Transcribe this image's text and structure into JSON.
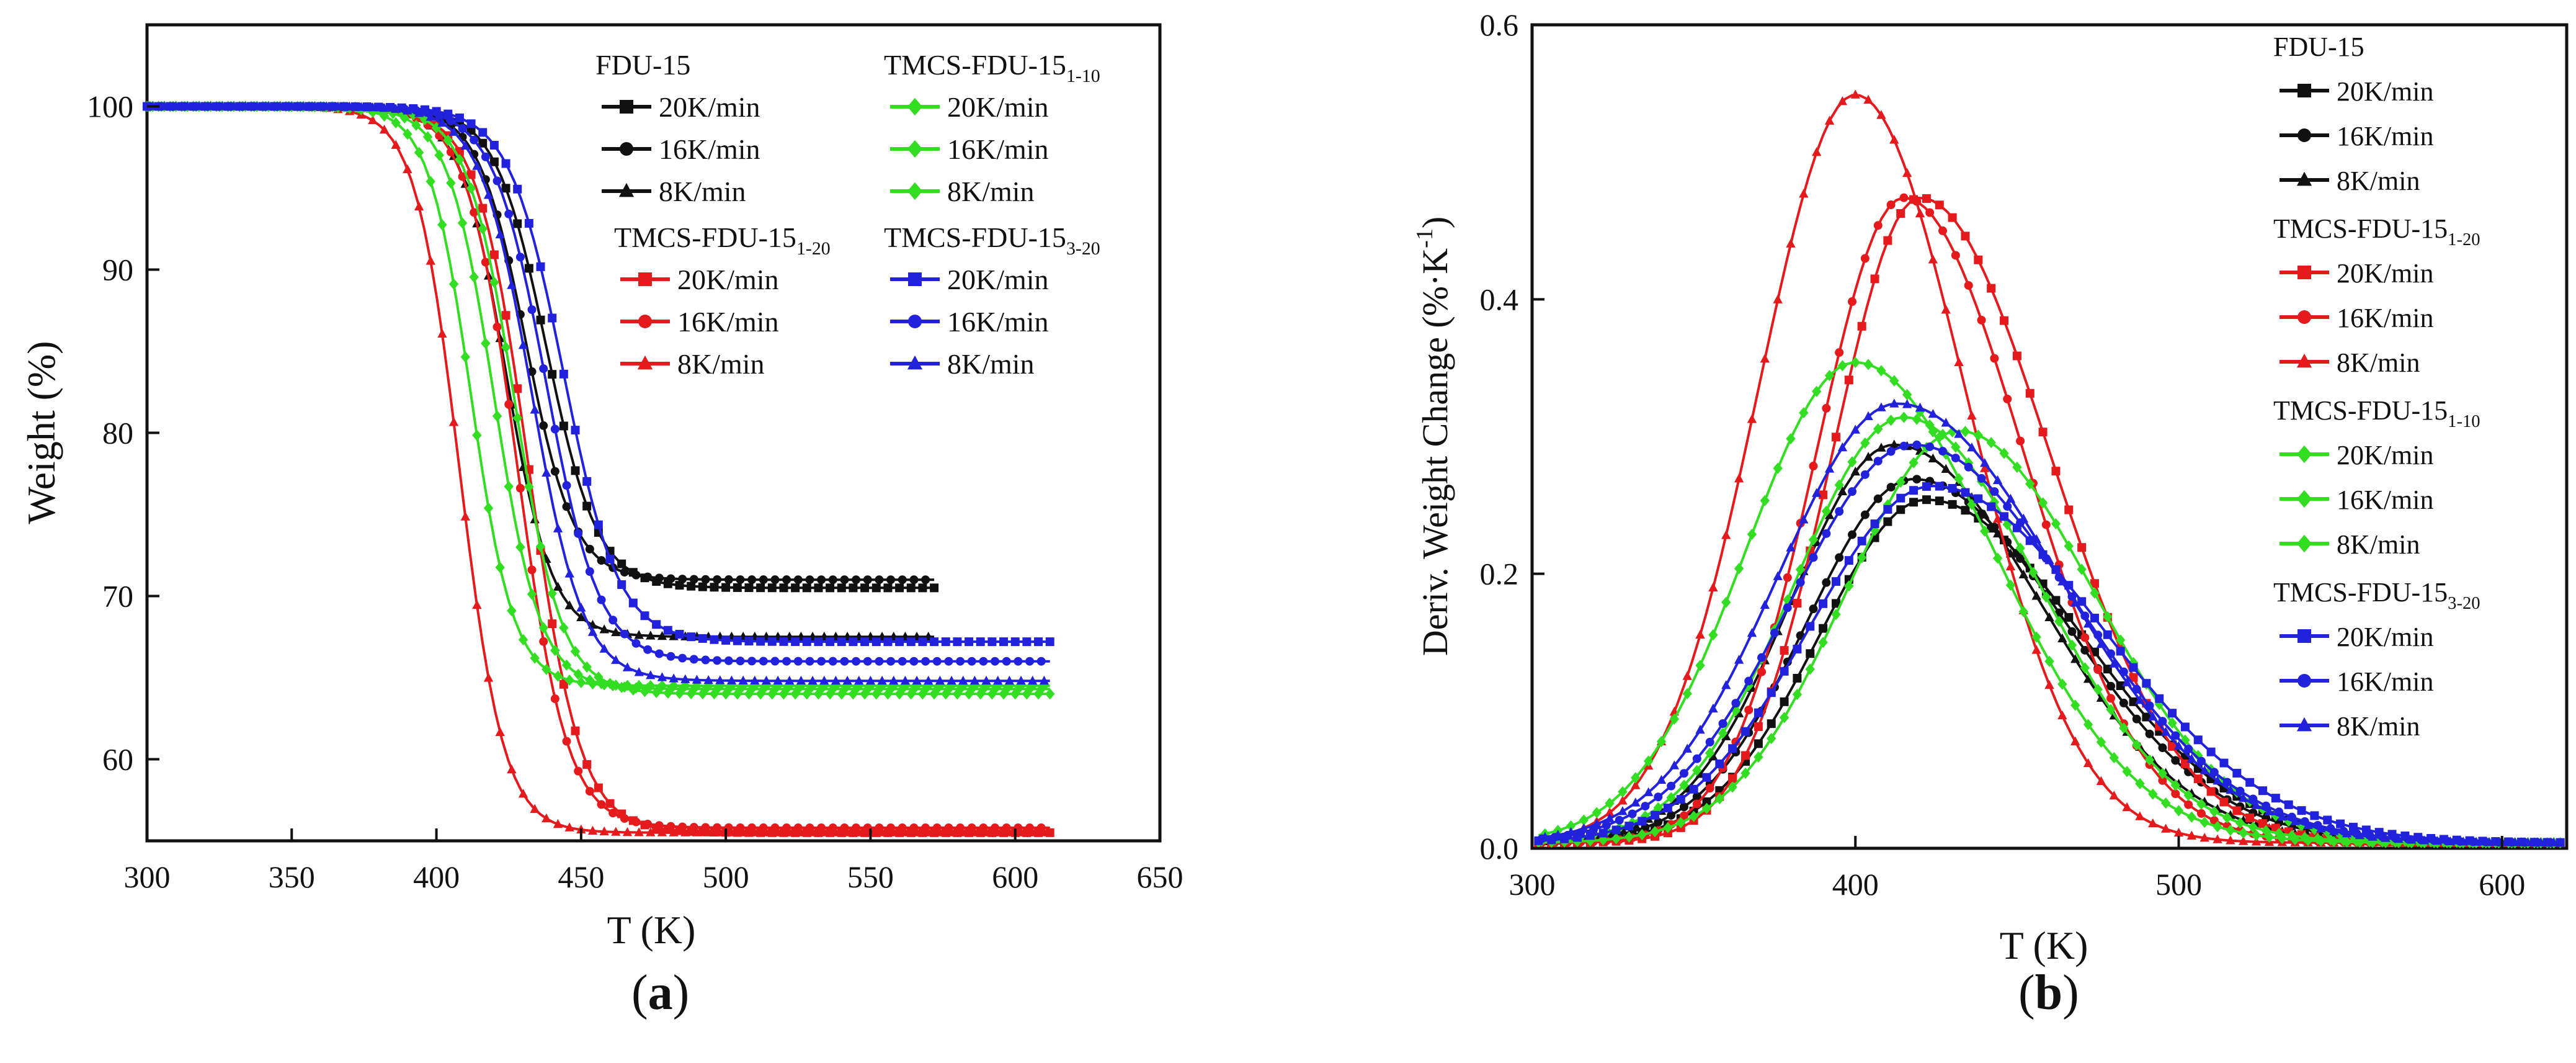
{
  "colors": {
    "black": "#111111",
    "red": "#e41a1c",
    "green": "#33dd22",
    "blue": "#2222dd"
  },
  "panel_labels": [
    {
      "open": "(",
      "letter": "a",
      "close": ")"
    },
    {
      "open": "(",
      "letter": "b",
      "close": ")"
    }
  ],
  "chart_data": [
    {
      "type": "line",
      "xlabel": "T (K)",
      "ylabel": "Weight (%)",
      "xlim": [
        300,
        650
      ],
      "ylim": [
        55,
        105
      ],
      "xticks": [
        300,
        350,
        400,
        450,
        500,
        550,
        600,
        650
      ],
      "yticks": [
        60,
        70,
        80,
        90,
        100
      ],
      "legend_placement": "top-right",
      "legend_groups": [
        {
          "title": "FDU-15",
          "title_sub": "",
          "color": "black",
          "entries": [
            {
              "label": "20K/min",
              "marker": "square"
            },
            {
              "label": "16K/min",
              "marker": "circle"
            },
            {
              "label": "8K/min",
              "marker": "triangle"
            }
          ]
        },
        {
          "title": "TMCS-FDU-15",
          "title_sub": "1-20",
          "color": "red",
          "entries": [
            {
              "label": "20K/min",
              "marker": "square"
            },
            {
              "label": "16K/min",
              "marker": "circle"
            },
            {
              "label": "8K/min",
              "marker": "triangle"
            }
          ]
        },
        {
          "title": "TMCS-FDU-15",
          "title_sub": "1-10",
          "color": "green",
          "entries": [
            {
              "label": "20K/min",
              "marker": "diamond"
            },
            {
              "label": "16K/min",
              "marker": "diamond"
            },
            {
              "label": "8K/min",
              "marker": "diamond"
            }
          ]
        },
        {
          "title": "TMCS-FDU-15",
          "title_sub": "3-20",
          "color": "blue",
          "entries": [
            {
              "label": "20K/min",
              "marker": "square"
            },
            {
              "label": "16K/min",
              "marker": "circle"
            },
            {
              "label": "8K/min",
              "marker": "triangle"
            }
          ]
        }
      ],
      "series": [
        {
          "name": "FDU-15 20K/min",
          "color": "black",
          "marker": "square",
          "x0": 300,
          "x1": 572,
          "y0": 100,
          "yend": 70.5,
          "tm": 438,
          "w": 30
        },
        {
          "name": "FDU-15 16K/min",
          "color": "black",
          "marker": "circle",
          "x0": 300,
          "x1": 572,
          "y0": 100,
          "yend": 71.0,
          "tm": 431,
          "w": 28
        },
        {
          "name": "FDU-15 8K/min",
          "color": "black",
          "marker": "triangle",
          "x0": 300,
          "x1": 572,
          "y0": 100,
          "yend": 67.5,
          "tm": 424,
          "w": 27
        },
        {
          "name": "TMCS-FDU-15(1-20) 20K/min",
          "color": "red",
          "marker": "square",
          "x0": 300,
          "x1": 612,
          "y0": 100,
          "yend": 55.5,
          "tm": 432,
          "w": 30
        },
        {
          "name": "TMCS-FDU-15(1-20) 16K/min",
          "color": "red",
          "marker": "circle",
          "x0": 300,
          "x1": 612,
          "y0": 100,
          "yend": 55.8,
          "tm": 428,
          "w": 29
        },
        {
          "name": "TMCS-FDU-15(1-20) 8K/min",
          "color": "red",
          "marker": "triangle",
          "x0": 300,
          "x1": 612,
          "y0": 100,
          "yend": 55.5,
          "tm": 408,
          "w": 26
        },
        {
          "name": "TMCS-FDU-15(1-10) 20K/min",
          "color": "green",
          "marker": "diamond",
          "x0": 300,
          "x1": 612,
          "y0": 100,
          "yend": 64.0,
          "tm": 427,
          "w": 28
        },
        {
          "name": "TMCS-FDU-15(1-10) 16K/min",
          "color": "green",
          "marker": "diamond",
          "x0": 300,
          "x1": 612,
          "y0": 100,
          "yend": 64.3,
          "tm": 420,
          "w": 27
        },
        {
          "name": "TMCS-FDU-15(1-10) 8K/min",
          "color": "green",
          "marker": "diamond",
          "x0": 300,
          "x1": 612,
          "y0": 100,
          "yend": 64.5,
          "tm": 412,
          "w": 25
        },
        {
          "name": "TMCS-FDU-15(3-20) 20K/min",
          "color": "blue",
          "marker": "square",
          "x0": 300,
          "x1": 612,
          "y0": 100,
          "yend": 67.2,
          "tm": 444,
          "w": 32
        },
        {
          "name": "TMCS-FDU-15(3-20) 16K/min",
          "color": "blue",
          "marker": "circle",
          "x0": 300,
          "x1": 612,
          "y0": 100,
          "yend": 66.0,
          "tm": 438,
          "w": 31
        },
        {
          "name": "TMCS-FDU-15(3-20) 8K/min",
          "color": "blue",
          "marker": "triangle",
          "x0": 300,
          "x1": 612,
          "y0": 100,
          "yend": 64.8,
          "tm": 433,
          "w": 30
        }
      ]
    },
    {
      "type": "line",
      "xlabel": "T (K)",
      "ylabel": "Deriv. Weight Change (%·K",
      "ylabel_sup": "-1",
      "ylabel_close": ")",
      "xlim": [
        300,
        620
      ],
      "ylim": [
        0,
        0.6
      ],
      "xticks": [
        300,
        400,
        500,
        600
      ],
      "yticks": [
        0.0,
        0.2,
        0.4,
        0.6
      ],
      "ytick_labels": [
        "0.0",
        "0.2",
        "0.4",
        "0.6"
      ],
      "legend_placement": "top-right",
      "legend_groups": [
        {
          "title": "FDU-15",
          "title_sub": "",
          "color": "black",
          "entries": [
            {
              "label": "20K/min",
              "marker": "square"
            },
            {
              "label": "16K/min",
              "marker": "circle"
            },
            {
              "label": "8K/min",
              "marker": "triangle"
            }
          ]
        },
        {
          "title": "TMCS-FDU-15",
          "title_sub": "1-20",
          "color": "red",
          "entries": [
            {
              "label": "20K/min",
              "marker": "square"
            },
            {
              "label": "16K/min",
              "marker": "circle"
            },
            {
              "label": "8K/min",
              "marker": "triangle"
            }
          ]
        },
        {
          "title": "TMCS-FDU-15",
          "title_sub": "1-10",
          "color": "green",
          "entries": [
            {
              "label": "20K/min",
              "marker": "diamond"
            },
            {
              "label": "16K/min",
              "marker": "diamond"
            },
            {
              "label": "8K/min",
              "marker": "diamond"
            }
          ]
        },
        {
          "title": "TMCS-FDU-15",
          "title_sub": "3-20",
          "color": "blue",
          "entries": [
            {
              "label": "20K/min",
              "marker": "square"
            },
            {
              "label": "16K/min",
              "marker": "circle"
            },
            {
              "label": "8K/min",
              "marker": "triangle"
            }
          ]
        }
      ],
      "series": [
        {
          "name": "FDU-15 20K/min",
          "color": "black",
          "marker": "square",
          "x0": 302,
          "x1": 618,
          "peak_x": 422,
          "peak_y": 0.25,
          "sl": 33,
          "sr": 48
        },
        {
          "name": "FDU-15 16K/min",
          "color": "black",
          "marker": "circle",
          "x0": 302,
          "x1": 618,
          "peak_x": 418,
          "peak_y": 0.265,
          "sl": 33,
          "sr": 47
        },
        {
          "name": "FDU-15 8K/min",
          "color": "black",
          "marker": "triangle",
          "x0": 302,
          "x1": 618,
          "peak_x": 412,
          "peak_y": 0.29,
          "sl": 32,
          "sr": 45
        },
        {
          "name": "TMCS-FDU-15(1-20) 20K/min",
          "color": "red",
          "marker": "square",
          "x0": 302,
          "x1": 618,
          "peak_x": 420,
          "peak_y": 0.47,
          "sl": 27,
          "sr": 40
        },
        {
          "name": "TMCS-FDU-15(1-20) 16K/min",
          "color": "red",
          "marker": "circle",
          "x0": 302,
          "x1": 618,
          "peak_x": 415,
          "peak_y": 0.47,
          "sl": 27,
          "sr": 37
        },
        {
          "name": "TMCS-FDU-15(1-20) 8K/min",
          "color": "red",
          "marker": "triangle",
          "x0": 302,
          "x1": 618,
          "peak_x": 400,
          "peak_y": 0.545,
          "sl": 30,
          "sr": 34
        },
        {
          "name": "TMCS-FDU-15(1-10) 20K/min",
          "color": "green",
          "marker": "diamond",
          "x0": 302,
          "x1": 618,
          "peak_x": 432,
          "peak_y": 0.3,
          "sl": 35,
          "sr": 42
        },
        {
          "name": "TMCS-FDU-15(1-10) 16K/min",
          "color": "green",
          "marker": "diamond",
          "x0": 302,
          "x1": 618,
          "peak_x": 415,
          "peak_y": 0.31,
          "sl": 34,
          "sr": 42
        },
        {
          "name": "TMCS-FDU-15(1-10) 8K/min",
          "color": "green",
          "marker": "diamond",
          "x0": 302,
          "x1": 618,
          "peak_x": 400,
          "peak_y": 0.35,
          "sl": 34,
          "sr": 43
        },
        {
          "name": "TMCS-FDU-15(3-20) 20K/min",
          "color": "blue",
          "marker": "square",
          "x0": 302,
          "x1": 618,
          "peak_x": 424,
          "peak_y": 0.26,
          "sl": 38,
          "sr": 52
        },
        {
          "name": "TMCS-FDU-15(3-20) 16K/min",
          "color": "blue",
          "marker": "circle",
          "x0": 302,
          "x1": 618,
          "peak_x": 418,
          "peak_y": 0.29,
          "sl": 38,
          "sr": 50
        },
        {
          "name": "TMCS-FDU-15(3-20) 8K/min",
          "color": "blue",
          "marker": "triangle",
          "x0": 302,
          "x1": 618,
          "peak_x": 413,
          "peak_y": 0.32,
          "sl": 37,
          "sr": 50
        }
      ]
    }
  ]
}
